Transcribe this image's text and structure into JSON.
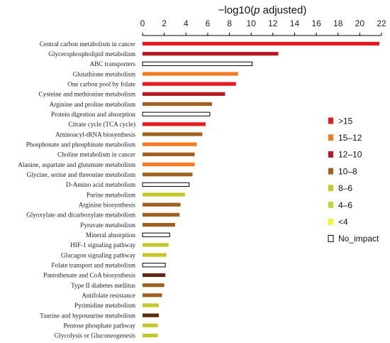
{
  "chart_data": {
    "type": "bar",
    "orientation": "horizontal",
    "title": "−log10(p adjusted)",
    "title_parts": {
      "prefix": "−log10(",
      "italic": "p",
      "suffix": " adjusted)"
    },
    "xlim": [
      0,
      22
    ],
    "xticks": [
      0,
      2,
      4,
      6,
      8,
      10,
      12,
      14,
      16,
      18,
      20,
      22
    ],
    "axis_position": "top",
    "grid": false,
    "legend_placement": "right",
    "categories": [
      "Central carbon metabolism in cancer",
      "Glycerophospholipid metabolism",
      "ABC transporters",
      "Glutathione metabolism",
      "One carbon pool by folate",
      "Cysteine and methionine metabolism",
      "Arginine and proline metabolism",
      "Protein digestion and absorption",
      "Citrate cycle (TCA cycle)",
      "Aminoacyl-tRNA biosynthesis",
      "Phosphonate and phosphinate metabolism",
      "Choline metabolism in cancer",
      "Alanine, aspartate and glutamate metabolism",
      "Glycine, serine and threonine metabolism",
      "D-Amino acid metabolism",
      "Purine metabolism",
      "Arginine biosynthesis",
      "Glyoxylate and dicarboxylate metabolism",
      "Pyruvate metabolism",
      "Mineral absorption",
      "HIF-1 signaling pathway",
      "Glucagon signaling pathway",
      "Folate transport and metabolism",
      "Pantothenate and CoA biosynthesis",
      "Type II diabetes mellitus",
      "Antifolate resistance",
      "Pyrimidine metabolism",
      "Taurine and hypotaurine metabolism",
      "Pentose phosphate pathway",
      "Glycolysis or Gluconeogenesis"
    ],
    "values": [
      21.8,
      12.5,
      10.1,
      8.8,
      8.6,
      7.6,
      6.4,
      6.2,
      5.8,
      5.5,
      5.0,
      4.8,
      4.8,
      4.6,
      4.3,
      3.9,
      3.5,
      3.4,
      3.0,
      2.5,
      2.4,
      2.2,
      2.1,
      2.1,
      2.0,
      1.8,
      1.5,
      1.5,
      1.4,
      1.4
    ],
    "impact": [
      ">15",
      "12–10",
      "No_impact",
      "15–12",
      ">15",
      "12–10",
      "10–8",
      "No_impact",
      ">15",
      "10–8",
      "15–12",
      "10–8",
      "15–12",
      "10–8",
      "No_impact",
      "8–6",
      "10–8",
      "10–8",
      "10–8",
      "No_impact",
      "8–6",
      "8–6",
      "No_impact",
      "dark",
      "10–8",
      "10–8",
      "8–6",
      "dark",
      "8–6",
      "8–6"
    ],
    "legend": [
      {
        "label": ">15",
        "color": "#e8191e"
      },
      {
        "label": "15–12",
        "color": "#f57a20"
      },
      {
        "label": "12–10",
        "color": "#b51a22"
      },
      {
        "label": "10–8",
        "color": "#a0611e"
      },
      {
        "label": "8–6",
        "color": "#c3c824"
      },
      {
        "label": "4–6",
        "color": "#bdd43b"
      },
      {
        "label": "<4",
        "color": "#f4f428"
      },
      {
        "label": "No_impact",
        "color": "#ffffff"
      }
    ],
    "extra_colors": {
      "dark": "#5e2a12"
    }
  }
}
